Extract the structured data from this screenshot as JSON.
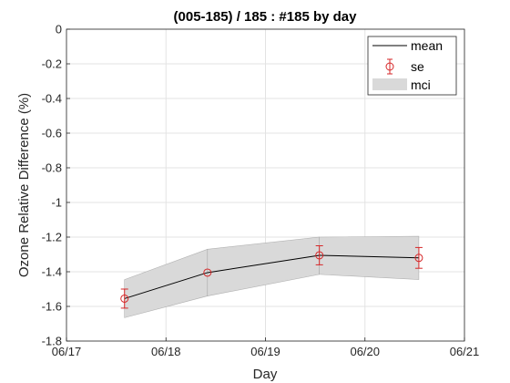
{
  "chart_data": {
    "type": "line",
    "title": "(005-185) / 185 : #185 by day",
    "xlabel": "Day",
    "ylabel": "Ozone Relative Difference (%)",
    "xlim": [
      "06/17",
      "06/21"
    ],
    "ylim": [
      -1.8,
      0
    ],
    "xticks": [
      "06/17",
      "06/18",
      "06/19",
      "06/20",
      "06/21"
    ],
    "yticks": [
      0,
      -0.2,
      -0.4,
      -0.6,
      -0.8,
      -1,
      -1.2,
      -1.4,
      -1.6,
      -1.8
    ],
    "ytick_labels": [
      "0",
      "-0.2",
      "-0.4",
      "-0.6",
      "-0.8",
      "-1",
      "-1.2",
      "-1.4",
      "-1.6",
      "-1.8"
    ],
    "grid": true,
    "legend_position": "top-right",
    "legend": [
      "mean",
      "se",
      "mci"
    ],
    "x": [
      "06/17 14:00",
      "06/18 10:00",
      "06/19 13:00",
      "06/20 13:00"
    ],
    "series": [
      {
        "name": "mean",
        "color": "#000000",
        "values": [
          -1.555,
          -1.405,
          -1.305,
          -1.32
        ]
      },
      {
        "name": "se",
        "color": "#d62728",
        "values": [
          -1.555,
          -1.405,
          -1.305,
          -1.32
        ],
        "err": [
          0.055,
          0.0,
          0.055,
          0.06
        ]
      },
      {
        "name": "mci",
        "color": "#d9d9d9",
        "lower": [
          -1.665,
          -1.54,
          -1.415,
          -1.445
        ],
        "upper": [
          -1.445,
          -1.27,
          -1.2,
          -1.195
        ]
      }
    ]
  }
}
